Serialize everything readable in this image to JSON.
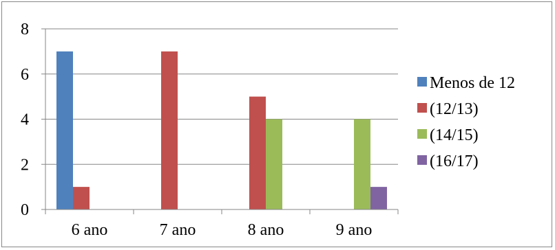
{
  "chart_data": {
    "type": "bar",
    "title": "",
    "xlabel": "",
    "ylabel": "",
    "categories": [
      "6 ano",
      "7 ano",
      "8 ano",
      "9 ano"
    ],
    "ylim": [
      0,
      8
    ],
    "yticks": [
      0,
      2,
      4,
      6,
      8
    ],
    "grid": true,
    "legend_position": "right",
    "series": [
      {
        "name": "Menos de 12",
        "color": "#4F81BD",
        "values": [
          7,
          0,
          0,
          0
        ]
      },
      {
        "name": "(12/13)",
        "color": "#C0504D",
        "values": [
          1,
          7,
          5,
          0
        ]
      },
      {
        "name": "(14/15)",
        "color": "#9BBB59",
        "values": [
          0,
          0,
          4,
          4
        ]
      },
      {
        "name": "(16/17)",
        "color": "#8064A2",
        "values": [
          0,
          0,
          0,
          1
        ]
      }
    ]
  }
}
